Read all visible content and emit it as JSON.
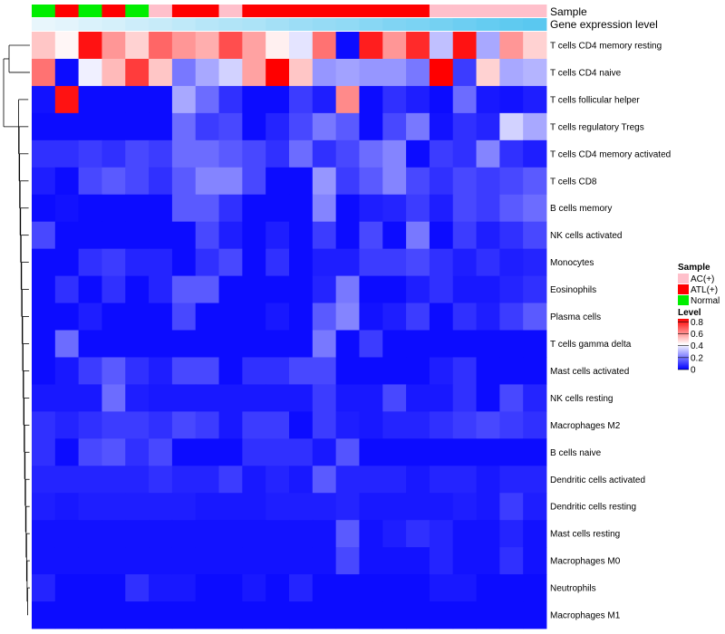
{
  "chart_data": {
    "type": "heatmap",
    "title": "",
    "annotation_tracks": [
      {
        "name": "Sample",
        "values": [
          "Normal",
          "ATL(+)",
          "Normal",
          "ATL(+)",
          "Normal",
          "AC(+)",
          "ATL(+)",
          "ATL(+)",
          "AC(+)",
          "ATL(+)",
          "ATL(+)",
          "ATL(+)",
          "ATL(+)",
          "ATL(+)",
          "ATL(+)",
          "ATL(+)",
          "ATL(+)",
          "AC(+)",
          "AC(+)",
          "AC(+)",
          "AC(+)",
          "AC(+)"
        ]
      },
      {
        "name": "Gene expression level",
        "values": [
          0.1,
          0.12,
          0.15,
          0.17,
          0.2,
          0.22,
          0.25,
          0.28,
          0.3,
          0.32,
          0.35,
          0.38,
          0.4,
          0.42,
          0.45,
          0.48,
          0.5,
          0.52,
          0.55,
          0.58,
          0.6,
          0.62
        ]
      }
    ],
    "legend": {
      "sample_title": "Sample",
      "sample_entries": [
        {
          "label": "AC(+)",
          "color": "#ffc0cb"
        },
        {
          "label": "ATL(+)",
          "color": "#ff0000"
        },
        {
          "label": "Normal",
          "color": "#00ee00"
        }
      ],
      "level_title": "Level",
      "level_ticks": [
        "0.8",
        "0.6",
        "0.4",
        "0.2",
        "0"
      ],
      "level_tick_values": [
        0.8,
        0.6,
        0.4,
        0.2,
        0
      ],
      "level_range": [
        0,
        0.85
      ]
    },
    "colors": {
      "low": "#0000ff",
      "mid": "#ffffff",
      "high": "#ff0000",
      "anno_low": "#e8f6fc",
      "anno_high": "#5ac8f0"
    },
    "value_range": [
      0,
      0.85
    ],
    "rows": [
      "T cells CD4 memory resting",
      "T cells CD4 naive",
      "T cells follicular helper",
      "T cells regulatory  Tregs",
      "T cells CD4 memory activated",
      "T cells CD8",
      "B cells memory",
      "NK cells activated",
      "Monocytes",
      "Eosinophils",
      "Plasma cells",
      "T cells gamma delta",
      "Mast cells activated",
      "NK cells resting",
      "Macrophages M2",
      "B cells naive",
      "Dendritic cells activated",
      "Dendritic cells resting",
      "Mast cells resting",
      "Macrophages M0",
      "Neutrophils",
      "Macrophages M1"
    ],
    "values": [
      [
        0.52,
        0.44,
        0.82,
        0.6,
        0.5,
        0.68,
        0.6,
        0.56,
        0.72,
        0.58,
        0.45,
        0.38,
        0.66,
        0.02,
        0.8,
        0.6,
        0.78,
        0.32,
        0.82,
        0.28,
        0.6,
        0.5
      ],
      [
        0.66,
        0.02,
        0.4,
        0.54,
        0.75,
        0.52,
        0.2,
        0.28,
        0.35,
        0.58,
        0.85,
        0.52,
        0.25,
        0.27,
        0.25,
        0.25,
        0.2,
        0.85,
        0.1,
        0.5,
        0.28,
        0.3
      ],
      [
        0.03,
        0.82,
        0.02,
        0.02,
        0.02,
        0.02,
        0.28,
        0.18,
        0.08,
        0.02,
        0.02,
        0.1,
        0.05,
        0.62,
        0.02,
        0.08,
        0.05,
        0.02,
        0.18,
        0.04,
        0.03,
        0.05
      ],
      [
        0.02,
        0.02,
        0.02,
        0.02,
        0.02,
        0.02,
        0.18,
        0.1,
        0.12,
        0.02,
        0.06,
        0.12,
        0.2,
        0.15,
        0.02,
        0.12,
        0.2,
        0.03,
        0.08,
        0.06,
        0.35,
        0.28
      ],
      [
        0.08,
        0.08,
        0.1,
        0.08,
        0.12,
        0.1,
        0.18,
        0.18,
        0.15,
        0.12,
        0.08,
        0.18,
        0.08,
        0.12,
        0.18,
        0.22,
        0.02,
        0.1,
        0.08,
        0.22,
        0.08,
        0.05
      ],
      [
        0.05,
        0.02,
        0.12,
        0.15,
        0.12,
        0.08,
        0.15,
        0.22,
        0.22,
        0.12,
        0.02,
        0.02,
        0.25,
        0.1,
        0.15,
        0.22,
        0.12,
        0.08,
        0.12,
        0.1,
        0.12,
        0.15
      ],
      [
        0.02,
        0.03,
        0.02,
        0.02,
        0.02,
        0.02,
        0.15,
        0.15,
        0.08,
        0.02,
        0.02,
        0.02,
        0.22,
        0.02,
        0.05,
        0.06,
        0.1,
        0.05,
        0.12,
        0.1,
        0.15,
        0.18
      ],
      [
        0.12,
        0.02,
        0.02,
        0.02,
        0.02,
        0.02,
        0.02,
        0.12,
        0.05,
        0.02,
        0.05,
        0.02,
        0.1,
        0.02,
        0.12,
        0.02,
        0.2,
        0.02,
        0.1,
        0.05,
        0.08,
        0.12
      ],
      [
        0.02,
        0.02,
        0.08,
        0.1,
        0.06,
        0.06,
        0.02,
        0.08,
        0.12,
        0.02,
        0.08,
        0.02,
        0.05,
        0.05,
        0.1,
        0.1,
        0.12,
        0.08,
        0.05,
        0.08,
        0.05,
        0.06
      ],
      [
        0.02,
        0.08,
        0.02,
        0.08,
        0.02,
        0.06,
        0.15,
        0.15,
        0.02,
        0.02,
        0.02,
        0.02,
        0.06,
        0.2,
        0.02,
        0.02,
        0.05,
        0.08,
        0.04,
        0.04,
        0.06,
        0.08
      ],
      [
        0.02,
        0.02,
        0.05,
        0.02,
        0.02,
        0.02,
        0.12,
        0.02,
        0.02,
        0.02,
        0.04,
        0.02,
        0.15,
        0.22,
        0.03,
        0.05,
        0.1,
        0.02,
        0.08,
        0.05,
        0.1,
        0.15
      ],
      [
        0.02,
        0.18,
        0.02,
        0.02,
        0.02,
        0.02,
        0.02,
        0.02,
        0.02,
        0.02,
        0.02,
        0.02,
        0.2,
        0.02,
        0.1,
        0.02,
        0.02,
        0.02,
        0.02,
        0.02,
        0.02,
        0.02
      ],
      [
        0.02,
        0.04,
        0.1,
        0.15,
        0.08,
        0.05,
        0.12,
        0.12,
        0.02,
        0.08,
        0.08,
        0.12,
        0.12,
        0.02,
        0.02,
        0.02,
        0.02,
        0.05,
        0.08,
        0.02,
        0.02,
        0.02
      ],
      [
        0.04,
        0.04,
        0.04,
        0.18,
        0.05,
        0.04,
        0.04,
        0.04,
        0.04,
        0.04,
        0.04,
        0.04,
        0.1,
        0.04,
        0.04,
        0.12,
        0.04,
        0.04,
        0.08,
        0.02,
        0.12,
        0.06
      ],
      [
        0.08,
        0.06,
        0.08,
        0.1,
        0.1,
        0.08,
        0.12,
        0.1,
        0.04,
        0.1,
        0.1,
        0.02,
        0.1,
        0.05,
        0.04,
        0.06,
        0.06,
        0.08,
        0.1,
        0.12,
        0.1,
        0.08
      ],
      [
        0.08,
        0.02,
        0.12,
        0.14,
        0.08,
        0.12,
        0.02,
        0.02,
        0.02,
        0.08,
        0.08,
        0.08,
        0.04,
        0.14,
        0.02,
        0.02,
        0.02,
        0.02,
        0.02,
        0.02,
        0.02,
        0.02
      ],
      [
        0.06,
        0.06,
        0.06,
        0.06,
        0.06,
        0.08,
        0.06,
        0.06,
        0.1,
        0.04,
        0.06,
        0.04,
        0.15,
        0.06,
        0.06,
        0.06,
        0.04,
        0.06,
        0.06,
        0.04,
        0.06,
        0.06
      ],
      [
        0.05,
        0.04,
        0.05,
        0.05,
        0.05,
        0.05,
        0.05,
        0.04,
        0.04,
        0.04,
        0.05,
        0.05,
        0.05,
        0.06,
        0.04,
        0.04,
        0.04,
        0.04,
        0.05,
        0.04,
        0.1,
        0.05
      ],
      [
        0.03,
        0.03,
        0.03,
        0.03,
        0.03,
        0.03,
        0.03,
        0.03,
        0.03,
        0.03,
        0.03,
        0.03,
        0.03,
        0.15,
        0.03,
        0.05,
        0.08,
        0.06,
        0.03,
        0.03,
        0.06,
        0.03
      ],
      [
        0.03,
        0.03,
        0.03,
        0.03,
        0.03,
        0.03,
        0.03,
        0.03,
        0.03,
        0.03,
        0.03,
        0.03,
        0.03,
        0.12,
        0.03,
        0.03,
        0.03,
        0.06,
        0.03,
        0.03,
        0.08,
        0.03
      ],
      [
        0.06,
        0.02,
        0.02,
        0.02,
        0.08,
        0.04,
        0.04,
        0.02,
        0.02,
        0.04,
        0.02,
        0.06,
        0.02,
        0.02,
        0.02,
        0.02,
        0.02,
        0.04,
        0.04,
        0.02,
        0.02,
        0.02
      ],
      [
        0.02,
        0.02,
        0.02,
        0.02,
        0.02,
        0.02,
        0.02,
        0.02,
        0.02,
        0.02,
        0.02,
        0.02,
        0.02,
        0.02,
        0.02,
        0.02,
        0.02,
        0.02,
        0.02,
        0.02,
        0.02,
        0.02
      ]
    ]
  }
}
